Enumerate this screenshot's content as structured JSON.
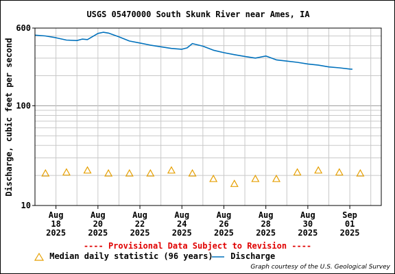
{
  "chart_data": {
    "type": "line",
    "title": "USGS 05470000 South Skunk River near Ames, IA",
    "ylabel": "Discharge, cubic feet per second",
    "xlabel": "",
    "y_scale": "log",
    "ylim": [
      10,
      600
    ],
    "yticks": [
      {
        "value": 10,
        "label": "10"
      },
      {
        "value": 100,
        "label": "100"
      },
      {
        "value": 600,
        "label": "600"
      }
    ],
    "xlim": [
      "2025-08-17T00:00",
      "2025-09-02T12:00"
    ],
    "xticks": [
      {
        "date": "2025-08-18",
        "lines": [
          "Aug",
          "18",
          "2025"
        ]
      },
      {
        "date": "2025-08-20",
        "lines": [
          "Aug",
          "20",
          "2025"
        ]
      },
      {
        "date": "2025-08-22",
        "lines": [
          "Aug",
          "22",
          "2025"
        ]
      },
      {
        "date": "2025-08-24",
        "lines": [
          "Aug",
          "24",
          "2025"
        ]
      },
      {
        "date": "2025-08-26",
        "lines": [
          "Aug",
          "26",
          "2025"
        ]
      },
      {
        "date": "2025-08-28",
        "lines": [
          "Aug",
          "28",
          "2025"
        ]
      },
      {
        "date": "2025-08-30",
        "lines": [
          "Aug",
          "30",
          "2025"
        ]
      },
      {
        "date": "2025-09-01",
        "lines": [
          "Sep",
          "01",
          "2025"
        ]
      }
    ],
    "grid": true,
    "legend_position": "bottom",
    "series": [
      {
        "name": "Discharge",
        "type": "line",
        "color": "#0071bc",
        "points": [
          [
            "2025-08-17T00:00",
            510
          ],
          [
            "2025-08-17T12:00",
            500
          ],
          [
            "2025-08-18T00:00",
            480
          ],
          [
            "2025-08-18T12:00",
            455
          ],
          [
            "2025-08-19T00:00",
            450
          ],
          [
            "2025-08-19T06:00",
            465
          ],
          [
            "2025-08-19T12:00",
            460
          ],
          [
            "2025-08-20T00:00",
            530
          ],
          [
            "2025-08-20T06:00",
            545
          ],
          [
            "2025-08-20T12:00",
            535
          ],
          [
            "2025-08-21T00:00",
            490
          ],
          [
            "2025-08-21T12:00",
            445
          ],
          [
            "2025-08-22T00:00",
            425
          ],
          [
            "2025-08-22T12:00",
            405
          ],
          [
            "2025-08-23T00:00",
            390
          ],
          [
            "2025-08-23T12:00",
            375
          ],
          [
            "2025-08-24T00:00",
            368
          ],
          [
            "2025-08-24T06:00",
            380
          ],
          [
            "2025-08-24T12:00",
            420
          ],
          [
            "2025-08-25T00:00",
            395
          ],
          [
            "2025-08-25T12:00",
            360
          ],
          [
            "2025-08-26T00:00",
            340
          ],
          [
            "2025-08-26T12:00",
            325
          ],
          [
            "2025-08-27T00:00",
            312
          ],
          [
            "2025-08-27T12:00",
            300
          ],
          [
            "2025-08-28T00:00",
            315
          ],
          [
            "2025-08-28T12:00",
            288
          ],
          [
            "2025-08-29T00:00",
            280
          ],
          [
            "2025-08-29T12:00",
            272
          ],
          [
            "2025-08-30T00:00",
            262
          ],
          [
            "2025-08-30T12:00",
            255
          ],
          [
            "2025-08-31T00:00",
            245
          ],
          [
            "2025-08-31T12:00",
            240
          ],
          [
            "2025-09-01T00:00",
            233
          ],
          [
            "2025-09-01T03:00",
            232
          ]
        ]
      },
      {
        "name": "Median daily statistic (96 years)",
        "type": "scatter",
        "marker": "triangle",
        "color": "#e69f00",
        "points": [
          [
            "2025-08-17T12:00",
            21
          ],
          [
            "2025-08-18T12:00",
            21.5
          ],
          [
            "2025-08-19T12:00",
            22.5
          ],
          [
            "2025-08-20T12:00",
            21
          ],
          [
            "2025-08-21T12:00",
            21
          ],
          [
            "2025-08-22T12:00",
            21
          ],
          [
            "2025-08-23T12:00",
            22.5
          ],
          [
            "2025-08-24T12:00",
            21
          ],
          [
            "2025-08-25T12:00",
            18.5
          ],
          [
            "2025-08-26T12:00",
            16.5
          ],
          [
            "2025-08-27T12:00",
            18.5
          ],
          [
            "2025-08-28T12:00",
            18.5
          ],
          [
            "2025-08-29T12:00",
            21.5
          ],
          [
            "2025-08-30T12:00",
            22.5
          ],
          [
            "2025-08-31T12:00",
            21.5
          ],
          [
            "2025-09-01T12:00",
            21
          ]
        ]
      }
    ]
  },
  "footer": {
    "provisional": "---- Provisional Data Subject to Revision ----",
    "credit": "Graph courtesy of the U.S. Geological Survey"
  },
  "legend": {
    "median_label": "Median daily statistic (96 years)",
    "discharge_label": "Discharge"
  }
}
